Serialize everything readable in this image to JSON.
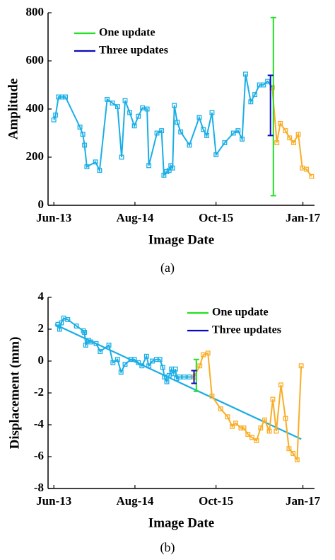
{
  "chart_data": [
    {
      "type": "line",
      "caption": "(a)",
      "xlabel": "Image Date",
      "ylabel": "Amplitude",
      "xlim": [
        -1,
        45
      ],
      "xticks": [
        {
          "value": 0,
          "label": "Jun-13"
        },
        {
          "value": 14,
          "label": "Aug-14"
        },
        {
          "value": 28,
          "label": "Oct-15"
        },
        {
          "value": 43,
          "label": "Jan-17"
        }
      ],
      "ylim": [
        0,
        800
      ],
      "yticks": [
        0,
        200,
        400,
        600,
        800
      ],
      "series": [
        {
          "color": "#1aaee6",
          "x": [
            0.0,
            0.3,
            0.8,
            1.4,
            2.0,
            4.5,
            5.0,
            5.3,
            5.7,
            7.2,
            7.9,
            9.2,
            10.1,
            11.0,
            11.7,
            12.3,
            13.1,
            13.9,
            14.6,
            15.3,
            16.1,
            16.4,
            17.8,
            18.6,
            19.0,
            19.5,
            19.9,
            20.2,
            20.5,
            20.8,
            21.3,
            21.9,
            23.4,
            25.1,
            25.8,
            26.4,
            27.3,
            28.0,
            29.5,
            31.0,
            31.8,
            32.5,
            33.1,
            34.0,
            34.7,
            35.5,
            36.2,
            36.9,
            37.7
          ],
          "values": [
            355,
            375,
            450,
            450,
            450,
            325,
            295,
            250,
            160,
            180,
            145,
            440,
            425,
            410,
            200,
            435,
            385,
            330,
            370,
            405,
            400,
            165,
            300,
            310,
            125,
            140,
            145,
            165,
            155,
            415,
            345,
            305,
            250,
            365,
            315,
            290,
            385,
            210,
            260,
            300,
            310,
            275,
            545,
            430,
            460,
            500,
            500,
            515,
            490
          ]
        },
        {
          "color": "#f9ad26",
          "x": [
            37.7,
            38.5,
            39.1,
            40.0,
            40.7,
            41.4,
            42.2,
            42.9,
            43.6,
            44.5
          ],
          "values": [
            490,
            260,
            340,
            310,
            280,
            260,
            295,
            155,
            150,
            120
          ]
        }
      ],
      "error_bars": [
        {
          "name": "One update",
          "color": "#22e022",
          "x": 37.9,
          "value": 410,
          "error": 370
        },
        {
          "name": "Three updates",
          "color": "#0a0ab8",
          "x": 37.4,
          "value": 415,
          "error": 125
        }
      ]
    },
    {
      "type": "line",
      "caption": "(b)",
      "xlabel": "Image Date",
      "ylabel": "Displacement (mm)",
      "xlim": [
        -1,
        45
      ],
      "xticks": [
        {
          "value": 0,
          "label": "Jun-13"
        },
        {
          "value": 14,
          "label": "Aug-14"
        },
        {
          "value": 28,
          "label": "Oct-15"
        },
        {
          "value": 43,
          "label": "Jan-17"
        }
      ],
      "ylim": [
        -8,
        4
      ],
      "yticks": [
        -8,
        -6,
        -4,
        -2,
        0,
        2,
        4
      ],
      "series": [
        {
          "color": "#1aaee6",
          "x": [
            0.7,
            1.0,
            1.3,
            1.7,
            2.4,
            3.9,
            5.1,
            5.3,
            5.5,
            6.0,
            6.4,
            7.3,
            8.0,
            9.5,
            10.2,
            11.0,
            11.6,
            12.3,
            13.3,
            13.9,
            14.6,
            15.2,
            16.0,
            16.4,
            17.0,
            17.7,
            18.3,
            18.8,
            19.1,
            19.5,
            19.9,
            20.3,
            20.7,
            21.0,
            21.2,
            21.7,
            22.5,
            23.4,
            24.2
          ],
          "values": [
            2.3,
            2.0,
            2.4,
            2.7,
            2.6,
            2.2,
            1.9,
            1.8,
            1.0,
            1.3,
            1.2,
            1.1,
            0.6,
            1.0,
            -0.1,
            0.1,
            -0.7,
            -0.2,
            0.1,
            0.1,
            -0.1,
            -0.3,
            0.3,
            -0.3,
            0.0,
            0.1,
            0.1,
            -0.4,
            -1.0,
            -1.3,
            -0.9,
            -0.5,
            -0.8,
            -0.5,
            -1.1,
            -1.0,
            -1.0,
            -1.0,
            -1.0
          ]
        },
        {
          "color": "#f9ad26",
          "x": [
            24.2,
            25.2,
            25.8,
            26.6,
            27.3,
            28.8,
            30.0,
            30.8,
            31.4,
            32.3,
            32.8,
            33.5,
            34.2,
            35.0,
            35.7,
            36.4,
            37.2,
            37.8,
            38.4,
            39.2,
            40.0,
            40.6,
            41.3,
            42.0,
            42.7
          ],
          "values": [
            -1.0,
            -0.3,
            0.4,
            0.5,
            -2.2,
            -3.0,
            -3.5,
            -4.1,
            -3.9,
            -4.2,
            -4.2,
            -4.6,
            -4.8,
            -5.0,
            -4.2,
            -3.7,
            -4.4,
            -2.4,
            -4.4,
            -1.5,
            -3.6,
            -5.5,
            -5.8,
            -6.2,
            -0.3
          ]
        }
      ],
      "trend": {
        "color": "#1aaee6",
        "x": [
          0.2,
          42.7
        ],
        "values": [
          2.3,
          -4.9
        ]
      },
      "error_bars": [
        {
          "name": "One update",
          "color": "#22e022",
          "x": 24.6,
          "value": -0.9,
          "error": 1.0
        },
        {
          "name": "Three updates",
          "color": "#0a0ab8",
          "x": 24.2,
          "value": -1.0,
          "error": 0.4
        }
      ]
    }
  ]
}
